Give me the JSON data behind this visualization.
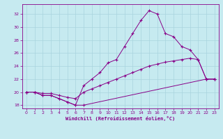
{
  "xlabel": "Windchill (Refroidissement éolien,°C)",
  "background_color": "#c6eaf0",
  "grid_color": "#a8d4de",
  "line_color": "#880088",
  "line1_x": [
    0,
    1,
    2,
    3,
    4,
    5,
    6,
    7,
    22,
    23
  ],
  "line1_y": [
    20,
    20,
    19.5,
    19.5,
    19,
    18.5,
    18,
    18,
    22,
    22
  ],
  "line2_x": [
    0,
    1,
    2,
    3,
    4,
    5,
    6,
    7,
    8,
    9,
    10,
    11,
    12,
    13,
    14,
    15,
    16,
    17,
    18,
    19,
    20,
    21,
    22,
    23
  ],
  "line2_y": [
    20,
    20,
    19.5,
    19.5,
    19,
    18.5,
    18,
    21,
    22,
    23,
    24.5,
    25,
    27,
    29,
    31,
    32.5,
    32,
    29,
    28.5,
    27,
    26.5,
    25,
    22,
    22
  ],
  "line3_x": [
    0,
    1,
    2,
    3,
    4,
    5,
    6,
    7,
    8,
    9,
    10,
    11,
    12,
    13,
    14,
    15,
    16,
    17,
    18,
    19,
    20,
    21,
    22,
    23
  ],
  "line3_y": [
    20,
    20,
    19.8,
    19.8,
    19.5,
    19.2,
    19,
    20,
    20.5,
    21,
    21.5,
    22,
    22.5,
    23,
    23.5,
    24,
    24.3,
    24.6,
    24.8,
    25,
    25.2,
    25,
    22,
    22
  ],
  "ylim": [
    17.5,
    33.5
  ],
  "xlim": [
    -0.5,
    23.5
  ],
  "yticks": [
    18,
    20,
    22,
    24,
    26,
    28,
    30,
    32
  ],
  "xticks": [
    0,
    1,
    2,
    3,
    4,
    5,
    6,
    7,
    8,
    9,
    10,
    11,
    12,
    13,
    14,
    15,
    16,
    17,
    18,
    19,
    20,
    21,
    22,
    23
  ],
  "tick_labels": [
    "0",
    "1",
    "2",
    "3",
    "4",
    "5",
    "6",
    "7",
    "8",
    "9",
    "10",
    "11",
    "12",
    "13",
    "14",
    "15",
    "16",
    "17",
    "18",
    "19",
    "20",
    "21",
    "22",
    "23"
  ]
}
